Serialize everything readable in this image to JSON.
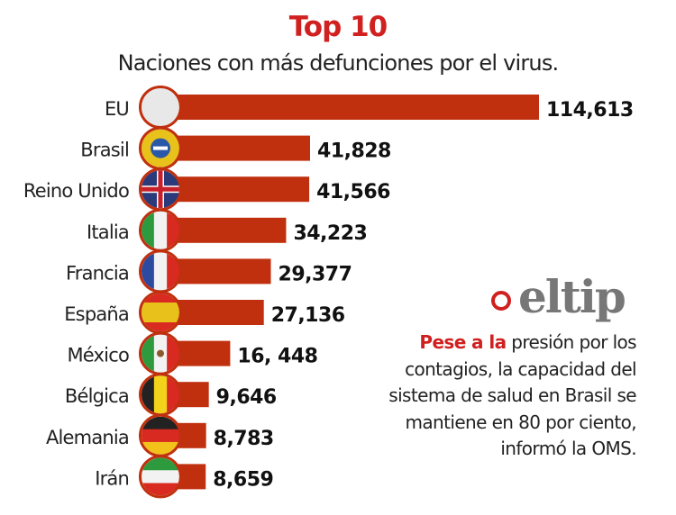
{
  "chart_data": {
    "type": "bar",
    "orientation": "horizontal",
    "title": "Top 10",
    "subtitle": "Naciones con más defunciones por el virus.",
    "categories": [
      "EU",
      "Brasil",
      "Reino Unido",
      "Italia",
      "Francia",
      "España",
      "México",
      "Bélgica",
      "Alemania",
      "Irán"
    ],
    "values": [
      114613,
      41828,
      41566,
      34223,
      29377,
      27136,
      16448,
      9646,
      8783,
      8659
    ],
    "value_labels": [
      "114,613",
      "41,828",
      "41,566",
      "34,223",
      "29,377",
      "27,136",
      "16, 448",
      "9,646",
      "8,783",
      "8,659"
    ],
    "flags": [
      "usa-flag",
      "brazil-flag",
      "uk-flag",
      "italy-flag",
      "france-flag",
      "spain-flag",
      "mexico-flag",
      "belgium-flag",
      "germany-flag",
      "iran-flag"
    ],
    "bar_color": "#c0300f",
    "grid": false
  },
  "tip": {
    "logo": "eltip",
    "lead": "Pese a la",
    "text": " presión por los contagios, la capacidad del sistema de salud en Brasil se mantiene en 80 por ciento, informó la OMS."
  }
}
